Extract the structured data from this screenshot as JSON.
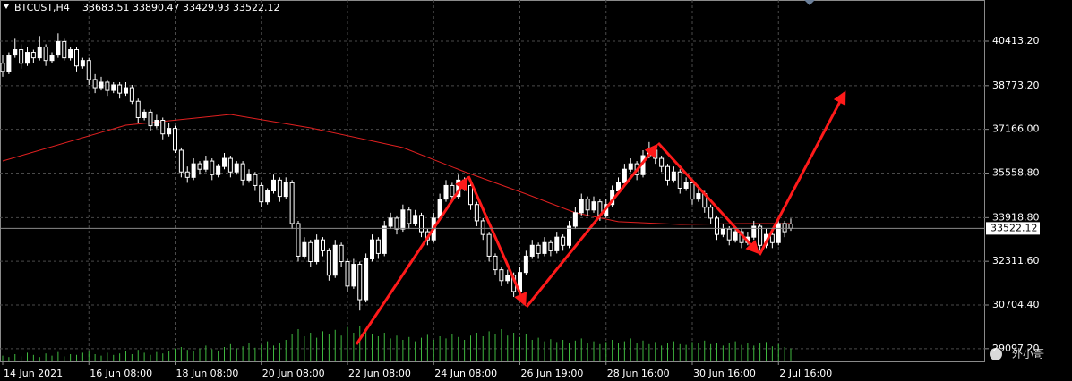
{
  "chart_data": {
    "type": "candlestick",
    "symbol": "BTCUST,H4",
    "watermark": "外小哥",
    "up_color": "#ffffff",
    "down_color": "#000000",
    "wick_color": "#ffffff",
    "volume_color": "#3fb83f",
    "ma_color": "#e02020",
    "price_line_color": "#8a8a8a",
    "grid": true,
    "ylim": [
      28631,
      41927
    ],
    "yticks": [
      {
        "value": 40413.2,
        "label": "40413.20"
      },
      {
        "value": 38773.2,
        "label": "38773.20"
      },
      {
        "value": 37166,
        "label": "37166.00"
      },
      {
        "value": 35558.8,
        "label": "35558.80"
      },
      {
        "value": 33918.8,
        "label": "33918.80"
      },
      {
        "value": 32311.6,
        "label": "32311.60"
      },
      {
        "value": 30704.4,
        "label": "30704.40"
      },
      {
        "value": 29097.2,
        "label": "29097.20"
      }
    ],
    "volume_lim": [
      0,
      100
    ],
    "categories": [
      "14 Jun 2021",
      null,
      null,
      null,
      null,
      null,
      null,
      null,
      null,
      null,
      null,
      null,
      null,
      null,
      "16 Jun 08:00",
      null,
      null,
      null,
      null,
      null,
      null,
      null,
      null,
      null,
      null,
      null,
      null,
      null,
      "18 Jun 08:00",
      null,
      null,
      null,
      null,
      null,
      null,
      null,
      null,
      null,
      null,
      null,
      null,
      null,
      "20 Jun 08:00",
      null,
      null,
      null,
      null,
      null,
      null,
      null,
      null,
      null,
      null,
      null,
      null,
      null,
      "22 Jun 08:00",
      null,
      null,
      null,
      null,
      null,
      null,
      null,
      null,
      null,
      null,
      null,
      null,
      null,
      "24 Jun 08:00",
      null,
      null,
      null,
      null,
      null,
      null,
      null,
      null,
      null,
      null,
      null,
      null,
      null,
      "26 Jun 19:00",
      null,
      null,
      null,
      null,
      null,
      null,
      null,
      null,
      null,
      null,
      null,
      null,
      null,
      "28 Jun 16:00",
      null,
      null,
      null,
      null,
      null,
      null,
      null,
      null,
      null,
      null,
      null,
      null,
      null,
      "30 Jun 16:00",
      null,
      null,
      null,
      null,
      null,
      null,
      null,
      null,
      null,
      null,
      null,
      null,
      null,
      "2 Jul 16:00",
      null,
      null
    ],
    "ohlc": [
      [
        39600,
        39900,
        39100,
        39300
      ],
      [
        39300,
        40000,
        39200,
        39900
      ],
      [
        39900,
        40500,
        39800,
        40100
      ],
      [
        40100,
        40300,
        39400,
        39600
      ],
      [
        39600,
        40200,
        39500,
        40000
      ],
      [
        40000,
        40100,
        39600,
        39800
      ],
      [
        39800,
        40600,
        39700,
        40200
      ],
      [
        40200,
        40300,
        39500,
        39700
      ],
      [
        39700,
        40000,
        39600,
        39900
      ],
      [
        39900,
        40700,
        39800,
        40400
      ],
      [
        40400,
        40500,
        39700,
        39800
      ],
      [
        39800,
        40200,
        39700,
        40100
      ],
      [
        40100,
        40200,
        39300,
        39500
      ],
      [
        39500,
        39800,
        39400,
        39700
      ],
      [
        39700,
        39800,
        38800,
        39000
      ],
      [
        39000,
        39200,
        38500,
        38700
      ],
      [
        38700,
        39100,
        38600,
        38900
      ],
      [
        38900,
        39000,
        38400,
        38600
      ],
      [
        38600,
        38900,
        38500,
        38800
      ],
      [
        38800,
        38900,
        38300,
        38500
      ],
      [
        38500,
        38900,
        38400,
        38700
      ],
      [
        38700,
        38800,
        38100,
        38200
      ],
      [
        38200,
        38300,
        37400,
        37600
      ],
      [
        37600,
        37900,
        37500,
        37800
      ],
      [
        37800,
        37900,
        37100,
        37300
      ],
      [
        37300,
        37700,
        37200,
        37500
      ],
      [
        37500,
        37600,
        36800,
        37000
      ],
      [
        37000,
        37400,
        36900,
        37200
      ],
      [
        37200,
        37300,
        36300,
        36400
      ],
      [
        36400,
        36500,
        35400,
        35600
      ],
      [
        35600,
        35800,
        35200,
        35400
      ],
      [
        35400,
        36100,
        35300,
        35900
      ],
      [
        35900,
        36000,
        35500,
        35700
      ],
      [
        35700,
        36200,
        35600,
        36000
      ],
      [
        36000,
        36100,
        35300,
        35500
      ],
      [
        35500,
        35900,
        35400,
        35800
      ],
      [
        35800,
        36300,
        35700,
        36100
      ],
      [
        36100,
        36200,
        35400,
        35600
      ],
      [
        35600,
        36000,
        35500,
        35900
      ],
      [
        35900,
        36000,
        35100,
        35300
      ],
      [
        35300,
        35700,
        35200,
        35500
      ],
      [
        35500,
        35600,
        34900,
        35100
      ],
      [
        35100,
        35200,
        34300,
        34500
      ],
      [
        34500,
        35000,
        34400,
        34900
      ],
      [
        34900,
        35500,
        34800,
        35300
      ],
      [
        35300,
        35400,
        34500,
        34700
      ],
      [
        34700,
        35400,
        34600,
        35200
      ],
      [
        35200,
        35300,
        33500,
        33700
      ],
      [
        33700,
        33800,
        32300,
        32500
      ],
      [
        32500,
        33200,
        32400,
        33000
      ],
      [
        33000,
        33100,
        32100,
        32300
      ],
      [
        32300,
        33300,
        32200,
        33100
      ],
      [
        33100,
        33200,
        32500,
        32700
      ],
      [
        32700,
        32800,
        31600,
        31800
      ],
      [
        31800,
        33100,
        31700,
        32900
      ],
      [
        32900,
        33000,
        32100,
        32300
      ],
      [
        32300,
        32400,
        31200,
        31400
      ],
      [
        31400,
        32400,
        31300,
        32200
      ],
      [
        32200,
        32300,
        30500,
        30900
      ],
      [
        30900,
        32600,
        30800,
        32400
      ],
      [
        32400,
        33300,
        32300,
        33100
      ],
      [
        33100,
        33200,
        32400,
        32600
      ],
      [
        32600,
        33800,
        32500,
        33600
      ],
      [
        33600,
        34100,
        33500,
        33900
      ],
      [
        33900,
        34000,
        33300,
        33500
      ],
      [
        33500,
        34400,
        33400,
        34200
      ],
      [
        34200,
        34300,
        33500,
        33700
      ],
      [
        33700,
        34200,
        33600,
        34000
      ],
      [
        34000,
        34100,
        33200,
        33400
      ],
      [
        33400,
        33500,
        32900,
        33100
      ],
      [
        33100,
        34100,
        33000,
        33900
      ],
      [
        33900,
        34800,
        33800,
        34600
      ],
      [
        34600,
        35300,
        34500,
        35100
      ],
      [
        35100,
        35200,
        34500,
        34700
      ],
      [
        34700,
        35500,
        34600,
        35300
      ],
      [
        35300,
        35400,
        34900,
        35100
      ],
      [
        35100,
        35200,
        34200,
        34400
      ],
      [
        34400,
        34500,
        33600,
        33800
      ],
      [
        33800,
        33900,
        33100,
        33300
      ],
      [
        33300,
        33400,
        32300,
        32500
      ],
      [
        32500,
        32600,
        31800,
        32000
      ],
      [
        32000,
        32100,
        31400,
        31600
      ],
      [
        31600,
        32000,
        31500,
        31800
      ],
      [
        31800,
        31900,
        31000,
        31200
      ],
      [
        31200,
        32100,
        31100,
        31900
      ],
      [
        31900,
        32700,
        31800,
        32500
      ],
      [
        32500,
        33100,
        32400,
        32900
      ],
      [
        32900,
        33000,
        32400,
        32600
      ],
      [
        32600,
        33200,
        32500,
        33000
      ],
      [
        33000,
        33100,
        32500,
        32700
      ],
      [
        32700,
        33400,
        32600,
        33200
      ],
      [
        33200,
        33300,
        32700,
        32900
      ],
      [
        32900,
        33800,
        32800,
        33600
      ],
      [
        33600,
        34300,
        33500,
        34100
      ],
      [
        34100,
        34800,
        34000,
        34600
      ],
      [
        34600,
        34700,
        34000,
        34200
      ],
      [
        34200,
        34700,
        34100,
        34500
      ],
      [
        34500,
        34600,
        33800,
        34000
      ],
      [
        34000,
        34600,
        33900,
        34400
      ],
      [
        34400,
        35100,
        34300,
        34900
      ],
      [
        34900,
        35400,
        34800,
        35200
      ],
      [
        35200,
        35900,
        35100,
        35700
      ],
      [
        35700,
        36100,
        35600,
        35900
      ],
      [
        35900,
        36000,
        35300,
        35500
      ],
      [
        35500,
        36400,
        35400,
        36200
      ],
      [
        36200,
        36700,
        36100,
        36400
      ],
      [
        36400,
        36500,
        35900,
        36100
      ],
      [
        36100,
        36200,
        35600,
        35800
      ],
      [
        35800,
        35900,
        35100,
        35300
      ],
      [
        35300,
        35800,
        35200,
        35600
      ],
      [
        35600,
        35700,
        34800,
        35000
      ],
      [
        35000,
        35400,
        34900,
        35200
      ],
      [
        35200,
        35300,
        34400,
        34600
      ],
      [
        34600,
        35000,
        34500,
        34800
      ],
      [
        34800,
        34900,
        34100,
        34300
      ],
      [
        34300,
        34400,
        33700,
        33900
      ],
      [
        33900,
        34000,
        33100,
        33300
      ],
      [
        33300,
        33700,
        33200,
        33500
      ],
      [
        33500,
        33600,
        32900,
        33100
      ],
      [
        33100,
        33600,
        33000,
        33400
      ],
      [
        33400,
        33500,
        32800,
        33000
      ],
      [
        33000,
        33400,
        32900,
        33200
      ],
      [
        33200,
        33800,
        33100,
        33600
      ],
      [
        33600,
        33700,
        32700,
        32900
      ],
      [
        32900,
        33500,
        32800,
        33300
      ],
      [
        33300,
        33400,
        32800,
        33000
      ],
      [
        33000,
        33900,
        32900,
        33700
      ],
      [
        33700,
        33800,
        33200,
        33400
      ],
      [
        33683.51,
        33890.47,
        33429.93,
        33522.12
      ]
    ],
    "volume": [
      8,
      6,
      10,
      7,
      12,
      9,
      6,
      11,
      8,
      13,
      7,
      10,
      9,
      12,
      15,
      10,
      8,
      12,
      9,
      11,
      14,
      10,
      16,
      12,
      9,
      13,
      11,
      15,
      18,
      20,
      16,
      14,
      18,
      22,
      17,
      15,
      20,
      24,
      18,
      21,
      25,
      19,
      23,
      28,
      22,
      26,
      30,
      38,
      45,
      35,
      40,
      33,
      42,
      38,
      44,
      36,
      48,
      40,
      50,
      42,
      38,
      35,
      40,
      32,
      36,
      30,
      34,
      28,
      33,
      37,
      30,
      35,
      32,
      38,
      34,
      30,
      36,
      40,
      35,
      42,
      38,
      45,
      36,
      40,
      34,
      38,
      30,
      33,
      28,
      31,
      27,
      30,
      25,
      29,
      32,
      26,
      28,
      24,
      27,
      30,
      25,
      28,
      32,
      26,
      29,
      24,
      27,
      22,
      26,
      28,
      24,
      23,
      27,
      25,
      29,
      24,
      26,
      22,
      25,
      28,
      23,
      26,
      22,
      25,
      27,
      21,
      24,
      20,
      18
    ],
    "ma_x": [
      0,
      20,
      37,
      50,
      65,
      75,
      85,
      93,
      100,
      110,
      120,
      128
    ],
    "ma_values": [
      36004,
      37320,
      37716,
      37222,
      36498,
      35609,
      34787,
      34096,
      33767,
      33668,
      33700,
      33700
    ]
  }
}
